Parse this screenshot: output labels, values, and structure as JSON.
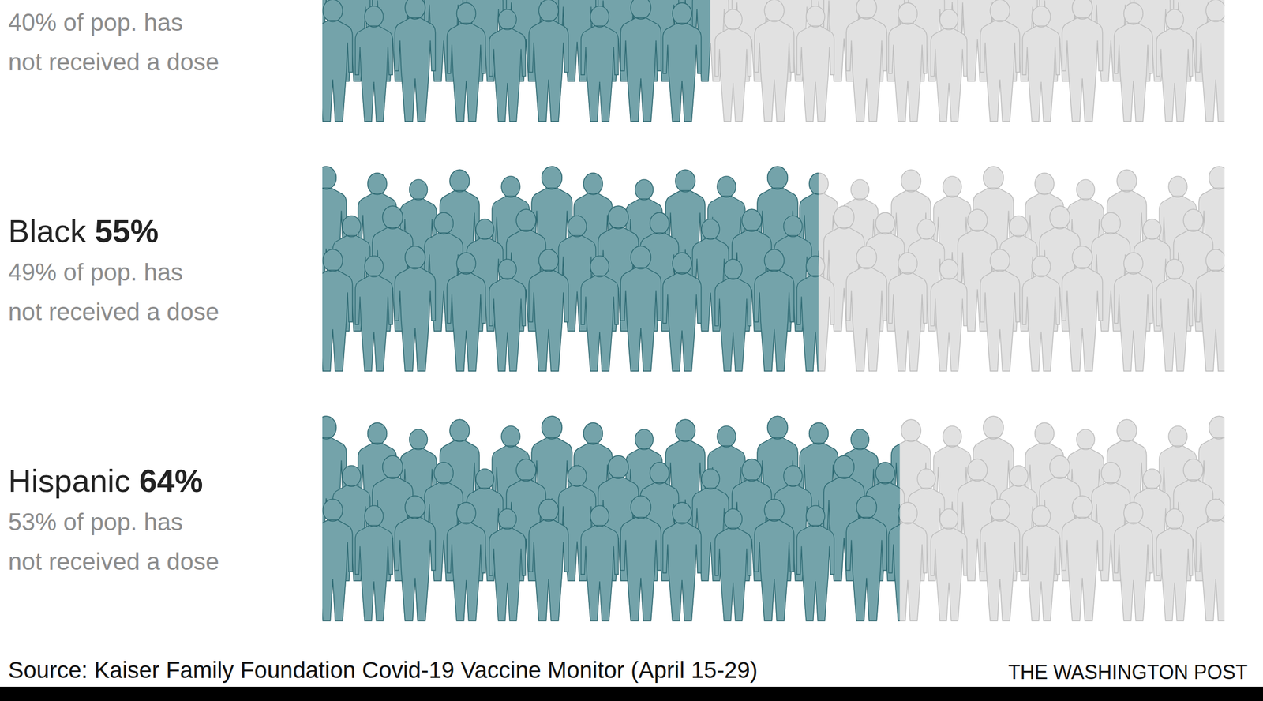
{
  "chart_data": {
    "type": "bar",
    "orientation": "horizontal",
    "categories": [
      null,
      "Black",
      "Hispanic"
    ],
    "values": [
      43,
      55,
      64
    ],
    "value_labels": [
      null,
      "55%",
      "64%"
    ],
    "annotations": [
      [
        "40% of pop. has",
        "not received a dose"
      ],
      [
        "49% of pop. has",
        "not received a dose"
      ],
      [
        "53% of pop. has",
        "not received a dose"
      ]
    ],
    "xlim": [
      0,
      100
    ],
    "tick_labels": false,
    "color": "#74a3aa",
    "source": "Source: Kaiser Family Foundation Covid-19 Vaccine Monitor (April 15-29)",
    "credit": "THE WASHINGTON POST"
  }
}
